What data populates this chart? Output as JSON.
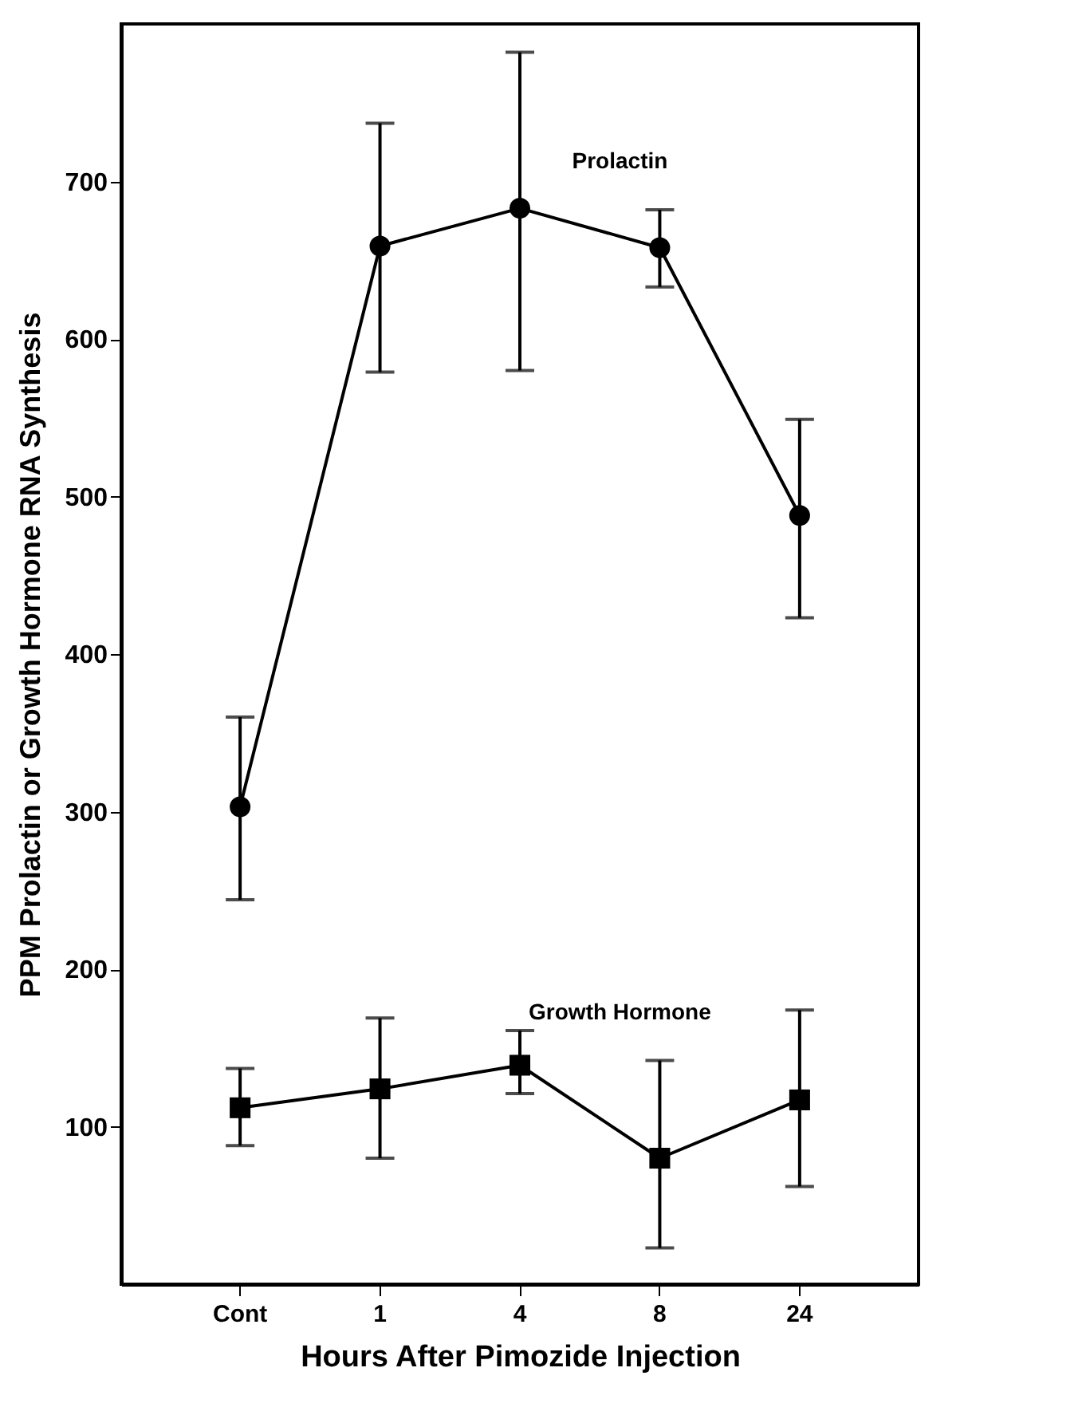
{
  "chart_data": {
    "type": "line",
    "xlabel": "Hours After Pimozide Injection",
    "ylabel": "PPM Prolactin or Growth Hormone RNA Synthesis",
    "categories": [
      "Cont",
      "1",
      "4",
      "8",
      "24"
    ],
    "ylim": [
      0,
      800
    ],
    "yticks": [
      100,
      200,
      300,
      400,
      500,
      600,
      700
    ],
    "grid": false,
    "series": [
      {
        "name": "Prolactin",
        "color": "#000000",
        "marker": "circle",
        "values": [
          303,
          659,
          683,
          658,
          488
        ],
        "errors": [
          [
            244,
            360
          ],
          [
            579,
            737
          ],
          [
            580,
            782
          ],
          [
            633,
            682
          ],
          [
            423,
            549
          ]
        ]
      },
      {
        "name": "Growth Hormone",
        "color": "#000000",
        "marker": "square",
        "values": [
          112,
          124,
          139,
          80,
          117
        ],
        "errors": [
          [
            88,
            137
          ],
          [
            80,
            169
          ],
          [
            121,
            161
          ],
          [
            23,
            142
          ],
          [
            62,
            174
          ]
        ]
      }
    ]
  }
}
